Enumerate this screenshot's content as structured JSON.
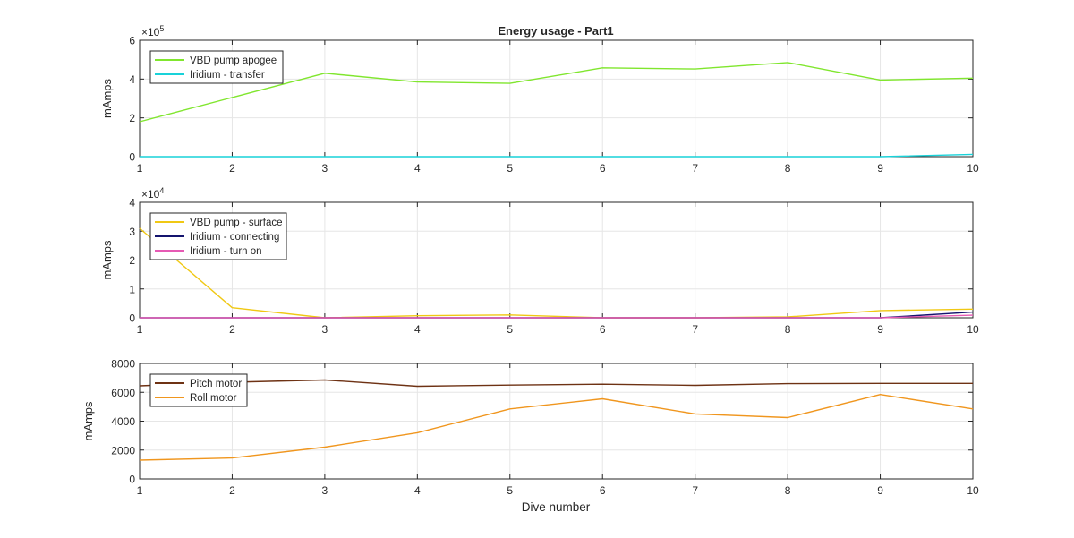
{
  "figure": {
    "title": "Energy usage - Part1",
    "xlabel": "Dive number"
  },
  "chart_data": [
    {
      "type": "line",
      "title": "Energy usage - Part1",
      "xlabel": "",
      "ylabel": "mAmps",
      "xlim": [
        1,
        10
      ],
      "ylim": [
        0,
        600000
      ],
      "x_ticks": [
        1,
        2,
        3,
        4,
        5,
        6,
        7,
        8,
        9,
        10
      ],
      "y_ticks": [
        0,
        200000,
        400000,
        600000
      ],
      "y_tick_labels": [
        "0",
        "2",
        "4",
        "6"
      ],
      "y_exponent": "5",
      "grid": true,
      "legend_position": "top-left",
      "x": [
        1,
        2,
        3,
        4,
        5,
        6,
        7,
        8,
        9,
        10
      ],
      "series": [
        {
          "name": "VBD pump apogee",
          "color": "#80e62e",
          "values": [
            180000,
            305000,
            430000,
            385000,
            378000,
            458000,
            452000,
            485000,
            395000,
            405000
          ]
        },
        {
          "name": "Iridium - transfer",
          "color": "#19d2d9",
          "values": [
            0,
            0,
            0,
            0,
            0,
            0,
            0,
            0,
            0,
            12000
          ]
        }
      ]
    },
    {
      "type": "line",
      "title": "",
      "xlabel": "",
      "ylabel": "mAmps",
      "xlim": [
        1,
        10
      ],
      "ylim": [
        0,
        40000
      ],
      "x_ticks": [
        1,
        2,
        3,
        4,
        5,
        6,
        7,
        8,
        9,
        10
      ],
      "y_ticks": [
        0,
        10000,
        20000,
        30000,
        40000
      ],
      "y_tick_labels": [
        "0",
        "1",
        "2",
        "3",
        "4"
      ],
      "y_exponent": "4",
      "grid": true,
      "legend_position": "top-left",
      "x": [
        1,
        2,
        3,
        4,
        5,
        6,
        7,
        8,
        9,
        10
      ],
      "series": [
        {
          "name": "VBD pump - surface",
          "color": "#f0c814",
          "values": [
            31000,
            3500,
            0,
            700,
            1000,
            0,
            0,
            300,
            2500,
            3000
          ]
        },
        {
          "name": "Iridium - connecting",
          "color": "#14146e",
          "values": [
            0,
            0,
            0,
            0,
            0,
            0,
            0,
            0,
            0,
            2000
          ]
        },
        {
          "name": "Iridium - turn on",
          "color": "#e65ab4",
          "values": [
            0,
            0,
            0,
            0,
            0,
            0,
            0,
            0,
            0,
            900
          ]
        }
      ]
    },
    {
      "type": "line",
      "title": "",
      "xlabel": "Dive number",
      "ylabel": "mAmps",
      "xlim": [
        1,
        10
      ],
      "ylim": [
        0,
        8000
      ],
      "x_ticks": [
        1,
        2,
        3,
        4,
        5,
        6,
        7,
        8,
        9,
        10
      ],
      "y_ticks": [
        0,
        2000,
        4000,
        6000,
        8000
      ],
      "y_tick_labels": [
        "0",
        "2000",
        "4000",
        "6000",
        "8000"
      ],
      "y_exponent": "",
      "grid": true,
      "legend_position": "top-left",
      "x": [
        1,
        2,
        3,
        4,
        5,
        6,
        7,
        8,
        9,
        10
      ],
      "series": [
        {
          "name": "Pitch motor",
          "color": "#6e3214",
          "values": [
            6450,
            6700,
            6850,
            6420,
            6500,
            6560,
            6480,
            6600,
            6620,
            6620
          ]
        },
        {
          "name": "Roll motor",
          "color": "#f0961e",
          "values": [
            1300,
            1450,
            2200,
            3200,
            4850,
            5550,
            4500,
            4250,
            5850,
            4850
          ]
        }
      ]
    }
  ]
}
